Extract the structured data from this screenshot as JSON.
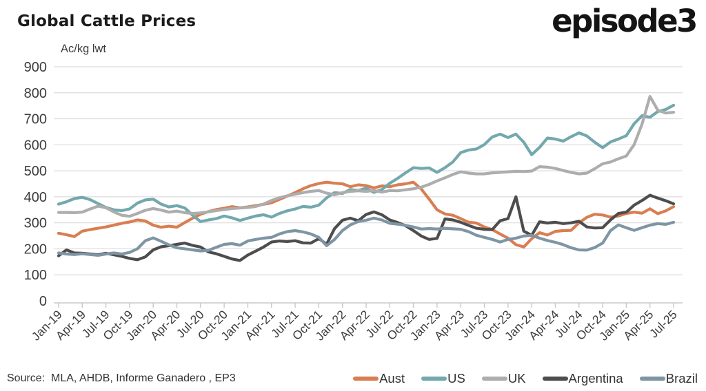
{
  "header": {
    "title": "Global Cattle Prices",
    "logo_text": "episode3"
  },
  "footer": {
    "source": "Source:  MLA, AHDB, Informe Ganadero , EP3"
  },
  "chart_data": {
    "type": "line",
    "title": "Global Cattle Prices",
    "ylabel": "Ac/kg lwt",
    "ylim": [
      0,
      900
    ],
    "y_ticks": [
      0,
      100,
      200,
      300,
      400,
      500,
      600,
      700,
      800,
      900
    ],
    "grid": "horizontal",
    "legend_position": "bottom-right",
    "x_frequency": "monthly",
    "x_range": [
      "Jan-19",
      "Jul-25"
    ],
    "x_tick_labels": [
      "Jan-19",
      "Apr-19",
      "Jul-19",
      "Oct-19",
      "Jan-20",
      "Apr-20",
      "Jul-20",
      "Oct-20",
      "Jan-21",
      "Apr-21",
      "Jul-21",
      "Oct-21",
      "Jan-22",
      "Apr-22",
      "Jul-22",
      "Oct-22",
      "Jan-23",
      "Apr-23",
      "Jul-23",
      "Oct-23",
      "Jan-24",
      "Apr-24",
      "Jul-24",
      "Oct-24",
      "Jan-25",
      "Apr-25",
      "Jul-25"
    ],
    "series": [
      {
        "name": "Aust",
        "color": "#D97E52",
        "values": [
          260,
          254,
          247,
          268,
          274,
          279,
          284,
          291,
          298,
          303,
          311,
          307,
          291,
          283,
          287,
          283,
          301,
          318,
          333,
          343,
          351,
          356,
          362,
          358,
          361,
          366,
          371,
          377,
          390,
          403,
          416,
          431,
          443,
          451,
          456,
          452,
          450,
          439,
          446,
          443,
          434,
          442,
          439,
          446,
          450,
          456,
          430,
          391,
          350,
          334,
          329,
          316,
          302,
          299,
          284,
          274,
          257,
          241,
          216,
          207,
          239,
          262,
          253,
          267,
          270,
          271,
          300,
          321,
          333,
          330,
          322,
          326,
          336,
          341,
          337,
          354,
          335,
          346,
          362
        ]
      },
      {
        "name": "US",
        "color": "#72A8AE",
        "values": [
          372,
          381,
          393,
          398,
          389,
          374,
          359,
          350,
          347,
          353,
          376,
          388,
          391,
          372,
          361,
          366,
          357,
          329,
          305,
          311,
          316,
          326,
          319,
          309,
          318,
          326,
          331,
          322,
          336,
          346,
          353,
          363,
          360,
          368,
          396,
          416,
          413,
          428,
          424,
          433,
          417,
          428,
          452,
          471,
          492,
          512,
          509,
          511,
          494,
          512,
          534,
          570,
          580,
          584,
          601,
          630,
          641,
          628,
          641,
          610,
          562,
          590,
          626,
          622,
          614,
          631,
          646,
          634,
          610,
          589,
          611,
          622,
          635,
          681,
          712,
          706,
          728,
          736,
          752
        ]
      },
      {
        "name": "UK",
        "color": "#ADADAD",
        "values": [
          340,
          340,
          339,
          341,
          353,
          364,
          358,
          342,
          329,
          325,
          336,
          348,
          355,
          349,
          341,
          345,
          339,
          336,
          338,
          342,
          347,
          351,
          355,
          357,
          359,
          363,
          372,
          386,
          396,
          404,
          410,
          416,
          421,
          424,
          414,
          408,
          416,
          421,
          423,
          421,
          424,
          418,
          424,
          423,
          427,
          431,
          437,
          448,
          461,
          473,
          486,
          496,
          491,
          488,
          488,
          492,
          494,
          496,
          498,
          497,
          499,
          516,
          514,
          509,
          501,
          494,
          488,
          491,
          508,
          527,
          534,
          546,
          557,
          601,
          680,
          786,
          733,
          722,
          725
        ]
      },
      {
        "name": "Argentina",
        "color": "#4D4D4D",
        "values": [
          173,
          196,
          184,
          183,
          180,
          177,
          183,
          177,
          171,
          163,
          158,
          169,
          196,
          208,
          212,
          217,
          222,
          213,
          207,
          188,
          181,
          171,
          161,
          155,
          176,
          191,
          207,
          226,
          230,
          228,
          231,
          223,
          222,
          239,
          218,
          278,
          310,
          318,
          308,
          332,
          342,
          331,
          311,
          301,
          289,
          270,
          249,
          236,
          240,
          315,
          311,
          302,
          290,
          279,
          275,
          274,
          308,
          316,
          400,
          268,
          252,
          304,
          299,
          302,
          297,
          300,
          306,
          284,
          280,
          281,
          311,
          336,
          341,
          368,
          386,
          406,
          395,
          385,
          373
        ]
      },
      {
        "name": "Brazil",
        "color": "#7E95A4",
        "values": [
          184,
          180,
          178,
          181,
          178,
          175,
          180,
          184,
          180,
          186,
          200,
          231,
          242,
          229,
          215,
          204,
          200,
          196,
          192,
          194,
          206,
          217,
          220,
          214,
          230,
          236,
          241,
          244,
          257,
          266,
          270,
          265,
          257,
          244,
          212,
          236,
          270,
          292,
          305,
          310,
          318,
          311,
          298,
          295,
          290,
          284,
          276,
          278,
          276,
          279,
          277,
          275,
          266,
          252,
          244,
          236,
          226,
          236,
          241,
          249,
          252,
          241,
          232,
          225,
          216,
          204,
          196,
          195,
          205,
          222,
          270,
          292,
          281,
          271,
          281,
          291,
          297,
          294,
          302
        ]
      }
    ]
  }
}
